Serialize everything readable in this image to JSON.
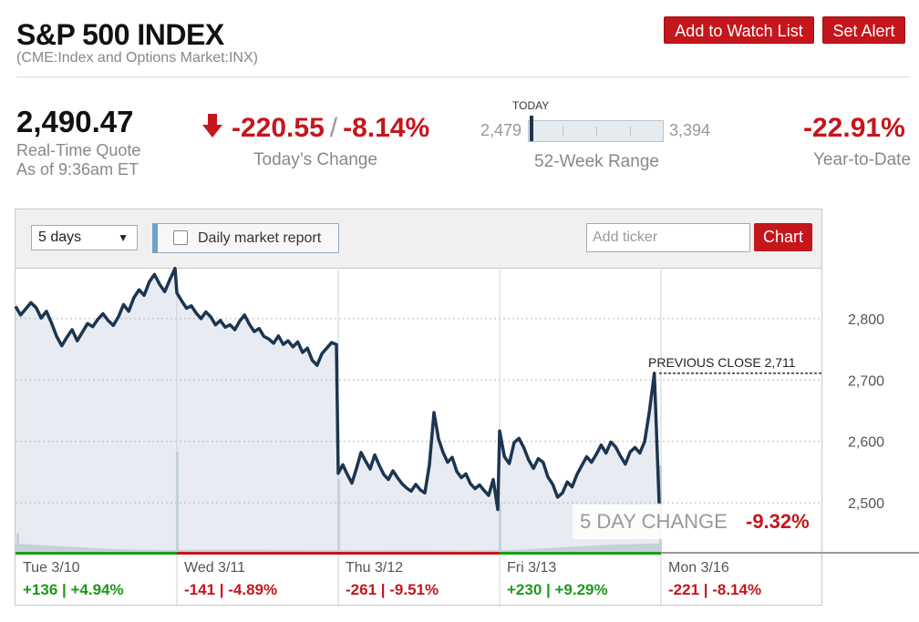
{
  "header": {
    "title": "S&P 500 INDEX",
    "subtitle": "(CME:Index and Options Market:INX)",
    "watch_label": "Add to Watch List",
    "alert_label": "Set Alert"
  },
  "quote": {
    "price": "2,490.47",
    "label_line1": "Real-Time Quote",
    "label_line2": "As of 9:36am ET",
    "change_points": "-220.55",
    "change_separator": "/",
    "change_percent": "-8.14%",
    "change_label": "Today’s Change",
    "range_today_label": "TODAY",
    "range_low": "2,479",
    "range_high": "3,394",
    "range_label": "52-Week Range",
    "range_position": 0.01,
    "ytd": "-22.91%",
    "ytd_label": "Year-to-Date",
    "down_color": "#c4161c",
    "up_color": "#1a9a1a"
  },
  "toolbar": {
    "period_value": "5 days",
    "report_label": "Daily market report",
    "ticker_placeholder": "Add ticker",
    "chart_button": "Chart"
  },
  "chart_data": {
    "type": "line",
    "ylim": [
      2420,
      2880
    ],
    "yticks": [
      2500,
      2600,
      2700,
      2800
    ],
    "ytick_labels": [
      "2,500",
      "2,600",
      "2,700",
      "2,800"
    ],
    "grid": true,
    "line_color": "#1c3550",
    "fill_color": "#e8ecf2",
    "previous_close": 2711,
    "previous_close_label": "PREVIOUS CLOSE 2,711",
    "five_day_label": "5 DAY CHANGE",
    "five_day_value": "-9.32%",
    "days": [
      {
        "date": "Tue 3/10",
        "change": "+136",
        "percent": "+4.94%",
        "direction": "up",
        "values": [
          2820,
          2806,
          2816,
          2826,
          2818,
          2801,
          2812,
          2793,
          2771,
          2756,
          2770,
          2782,
          2764,
          2778,
          2792,
          2787,
          2799,
          2808,
          2797,
          2789,
          2803,
          2823,
          2812,
          2834,
          2847,
          2838,
          2860,
          2872,
          2856,
          2844,
          2864,
          2882
        ]
      },
      {
        "date": "Wed 3/11",
        "change": "-141",
        "percent": "-4.89%",
        "direction": "down",
        "values": [
          2842,
          2829,
          2817,
          2821,
          2809,
          2800,
          2811,
          2803,
          2790,
          2797,
          2786,
          2790,
          2782,
          2796,
          2806,
          2791,
          2779,
          2784,
          2771,
          2767,
          2760,
          2772,
          2758,
          2764,
          2754,
          2762,
          2745,
          2752,
          2732,
          2724,
          2743,
          2752,
          2761,
          2758
        ]
      },
      {
        "date": "Thu 3/12",
        "change": "-261",
        "percent": "-9.51%",
        "direction": "down",
        "values": [
          2548,
          2562,
          2546,
          2532,
          2556,
          2582,
          2568,
          2555,
          2578,
          2561,
          2546,
          2538,
          2552,
          2541,
          2531,
          2524,
          2519,
          2530,
          2521,
          2516,
          2562,
          2647,
          2604,
          2582,
          2566,
          2574,
          2551,
          2541,
          2547,
          2531,
          2523,
          2529,
          2520,
          2512,
          2538,
          2489
        ]
      },
      {
        "date": "Fri 3/13",
        "change": "+230",
        "percent": "+9.29%",
        "direction": "up",
        "values": [
          2617,
          2575,
          2564,
          2598,
          2605,
          2590,
          2570,
          2556,
          2572,
          2566,
          2542,
          2530,
          2509,
          2516,
          2534,
          2526,
          2546,
          2561,
          2575,
          2566,
          2579,
          2594,
          2581,
          2599,
          2591,
          2576,
          2563,
          2583,
          2590,
          2581,
          2600,
          2650,
          2711,
          2499
        ]
      },
      {
        "date": "Mon 3/16",
        "change": "-221",
        "percent": "-8.14%",
        "direction": "down",
        "values": []
      }
    ],
    "volume": [
      0.9,
      0.6,
      0.3,
      0.2,
      0.25,
      0.22,
      0.2,
      0.18,
      0.2,
      0.16,
      0.2,
      0.5,
      0.8,
      0.95
    ]
  }
}
